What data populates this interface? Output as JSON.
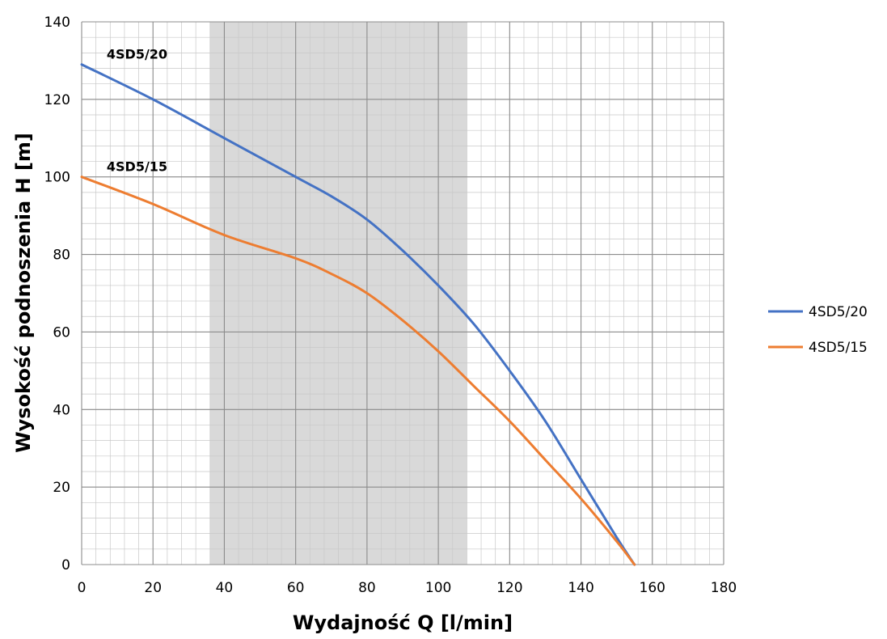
{
  "chart_data": {
    "type": "line",
    "title": "",
    "xlabel": "Wydajność Q [l/min]",
    "ylabel": "Wysokość podnoszenia H [m]",
    "xlim": [
      0,
      180
    ],
    "ylim": [
      0,
      140
    ],
    "x_ticks": [
      0,
      20,
      40,
      60,
      80,
      100,
      120,
      140,
      160,
      180
    ],
    "y_ticks": [
      0,
      20,
      40,
      60,
      80,
      100,
      120,
      140
    ],
    "grid": true,
    "legend_position": "right",
    "highlight_band": {
      "x_start": 36,
      "x_end": 108,
      "color": "#d9d9d9"
    },
    "series": [
      {
        "name": "4SD5/20",
        "label": "4SD5/20",
        "color": "#4472c4",
        "x": [
          0,
          20,
          40,
          60,
          70,
          80,
          90,
          100,
          110,
          120,
          130,
          140,
          150,
          155
        ],
        "values": [
          129,
          120,
          110,
          100,
          95,
          89,
          81,
          72,
          62,
          50,
          37,
          22,
          7,
          0
        ]
      },
      {
        "name": "4SD5/15",
        "label": "4SD5/15",
        "color": "#ed7d31",
        "x": [
          0,
          20,
          40,
          60,
          70,
          80,
          90,
          100,
          110,
          120,
          130,
          140,
          150,
          155
        ],
        "values": [
          100,
          93,
          85,
          79,
          75,
          70,
          63,
          55,
          46,
          37,
          27,
          17,
          6,
          0
        ]
      }
    ]
  }
}
